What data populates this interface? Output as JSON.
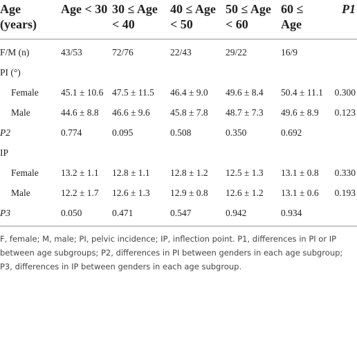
{
  "table": {
    "header": [
      "Age (years)",
      "Age < 30",
      "30 ≤ Age < 40",
      "40 ≤ Age < 50",
      "50 ≤ Age < 60",
      "60 ≤ Age",
      "P1"
    ],
    "rows": [
      [
        "F/M (n)",
        "43/53",
        "72/76",
        "22/43",
        "29/22",
        "16/9"
      ],
      [
        "PI (°)"
      ],
      [
        "Female",
        "45.1 ± 10.6",
        "47.5 ± 11.5",
        "46.4 ± 9.0",
        "49.6 ± 8.4",
        "50.4 ± 11.1",
        "0.300"
      ],
      [
        "Male",
        "44.6 ± 8.8",
        "46.6 ± 9.6",
        "45.8 ± 7.8",
        "48.7 ± 7.3",
        "49.6 ± 8.9",
        "0.123"
      ],
      [
        "P2",
        "0.774",
        "0.095",
        "0.508",
        "0.350",
        "0.692"
      ],
      [
        "IP"
      ],
      [
        "Female",
        "13.2 ± 1.1",
        "12.8 ± 1.1",
        "12.8 ± 1.2",
        "12.5 ± 1.3",
        "13.1 ± 0.8",
        "0.330"
      ],
      [
        "Male",
        "12.2 ± 1.7",
        "12.6 ± 1.3",
        "12.9 ± 0.8",
        "12.6 ± 1.2",
        "13.1 ± 0.6",
        "0.193"
      ],
      [
        "P3",
        "0.050",
        "0.471",
        "0.547",
        "0.942",
        "0.934"
      ]
    ],
    "footnote": "F, female; M, male; PI, pelvic incidence; IP, inflection point. P1, differences in PI or IP between age subgroups; P2, differences in PI between genders in each age subgroup; P3, differences in IP between genders in each age subgroup."
  }
}
